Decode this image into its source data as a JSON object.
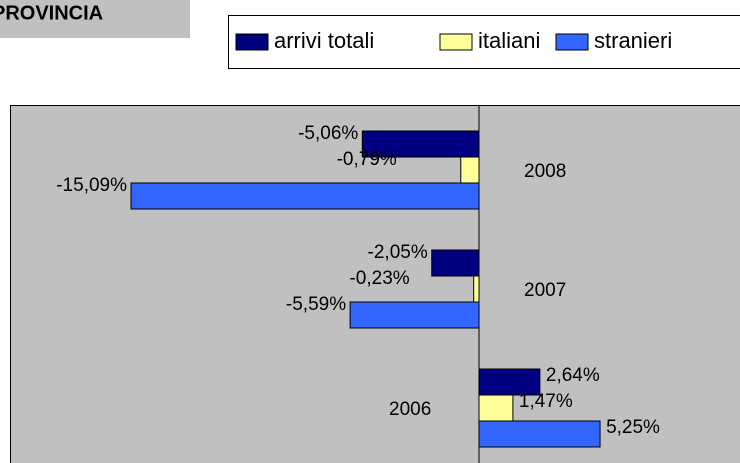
{
  "chart_data": {
    "type": "bar",
    "orientation": "horizontal",
    "title": "PROVINCIA",
    "categories": [
      "2008",
      "2007",
      "2006"
    ],
    "series": [
      {
        "name": "arrivi totali",
        "color": "#000080",
        "values": [
          -5.06,
          -2.05,
          2.64
        ],
        "value_labels": [
          "-5,06%",
          "-2,05%",
          "2,64%"
        ]
      },
      {
        "name": "italiani",
        "color": "#ffff99",
        "values": [
          -0.79,
          -0.23,
          1.47
        ],
        "value_labels": [
          "-0,79%",
          "-0,23%",
          "1,47%"
        ]
      },
      {
        "name": "stranieri",
        "color": "#3366ff",
        "values": [
          -15.09,
          -5.59,
          5.25
        ],
        "value_labels": [
          "-15,09%",
          "-5,59%",
          "5,25%"
        ]
      }
    ],
    "legend": "top-right"
  }
}
